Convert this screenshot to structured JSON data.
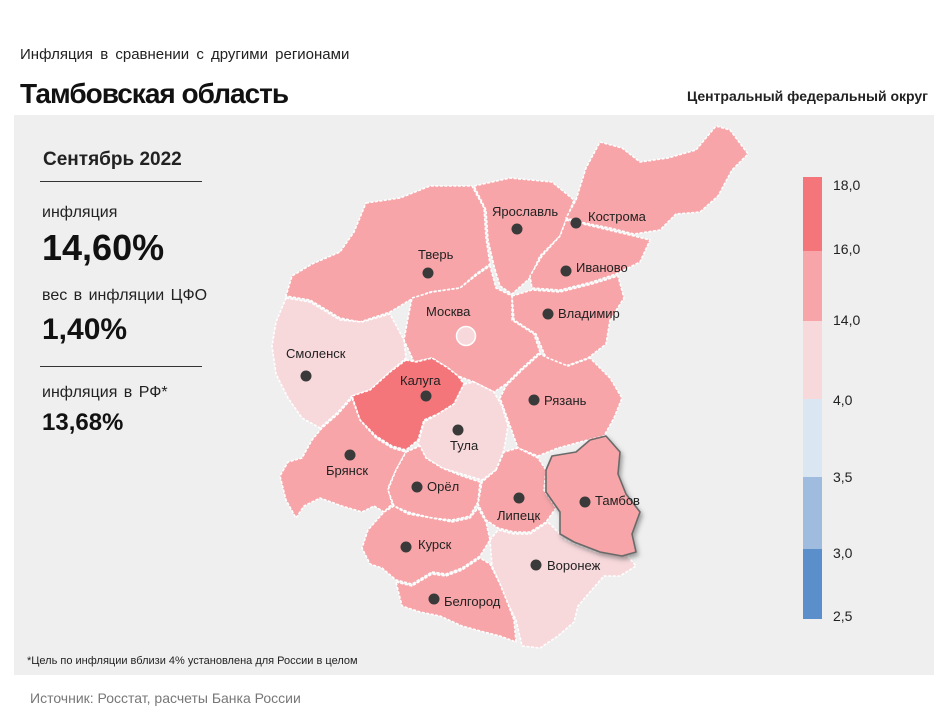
{
  "header": {
    "subtitle": "Инфляция  в сравнении  с другими  регионами",
    "title": "Тамбовская область",
    "district": "Центральный федеральный округ"
  },
  "stats": {
    "period": "Сентябрь 2022",
    "inflation_label": "инфляция",
    "inflation_value": "14,60%",
    "weight_label": "вес в инфляции  ЦФО",
    "weight_value": "1,40%",
    "russia_label": "инфляция  в РФ*",
    "russia_value": "13,68%"
  },
  "colors": {
    "high": "#f4767a",
    "mid": "#f7a5a8",
    "low": "#f7d8db",
    "blue_light": "#dbe6f3",
    "blue_mid": "#9fbcde",
    "blue_dark": "#5b8fcc",
    "highlight_region": "Тамбов"
  },
  "legend": {
    "ticks": [
      "18,0",
      "16,0",
      "14,0",
      "4,0",
      "3,5",
      "3,0",
      "2,5"
    ]
  },
  "regions": [
    {
      "name": "Ярославль",
      "class": "mid"
    },
    {
      "name": "Кострома",
      "class": "mid"
    },
    {
      "name": "Тверь",
      "class": "mid"
    },
    {
      "name": "Иваново",
      "class": "mid"
    },
    {
      "name": "Москва",
      "class": "mid"
    },
    {
      "name": "Владимир",
      "class": "mid"
    },
    {
      "name": "Смоленск",
      "class": "low"
    },
    {
      "name": "Калуга",
      "class": "high"
    },
    {
      "name": "Рязань",
      "class": "mid"
    },
    {
      "name": "Тула",
      "class": "low"
    },
    {
      "name": "Брянск",
      "class": "mid"
    },
    {
      "name": "Орёл",
      "class": "mid"
    },
    {
      "name": "Липецк",
      "class": "mid"
    },
    {
      "name": "Тамбов",
      "class": "mid"
    },
    {
      "name": "Курск",
      "class": "mid"
    },
    {
      "name": "Воронеж",
      "class": "low"
    },
    {
      "name": "Белгород",
      "class": "mid"
    }
  ],
  "footnote": "*Цель по инфляции вблизи 4% установлена для России в целом",
  "source": "Источник: Росстат, расчеты Банка России"
}
